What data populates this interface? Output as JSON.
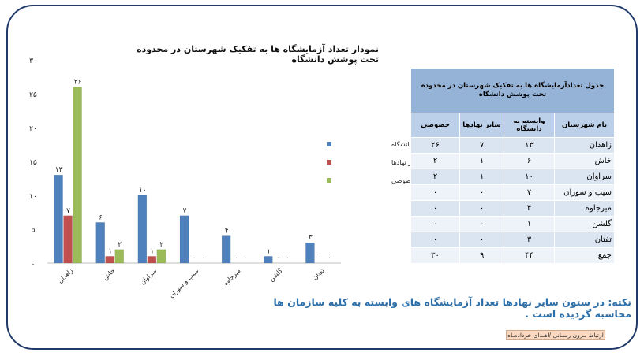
{
  "chart_data": {
    "type": "bar",
    "title": "نمودار تعداد آزمایشگاه ها به تفکیک شهرستان در محدوده تحت پوشش دانشگاه",
    "categories": [
      "زاهدان",
      "خاش",
      "سراوان",
      "سیب و سوران",
      "میرجاوه",
      "گلشن",
      "تفتان"
    ],
    "series": [
      {
        "name": "وابسته به دانشگاه",
        "color": "#4f81bd",
        "values": [
          13,
          6,
          10,
          7,
          4,
          1,
          3
        ],
        "labels": [
          "۱۳",
          "۶",
          "۱۰",
          "۷",
          "۴",
          "۱",
          "۳"
        ]
      },
      {
        "name": "سایر نهادها",
        "color": "#c0504d",
        "values": [
          7,
          1,
          1,
          0,
          0,
          0,
          0
        ],
        "labels": [
          "۷",
          "۱",
          "۱",
          "۰",
          "۰",
          "۰",
          "۰"
        ]
      },
      {
        "name": "خصوصی",
        "color": "#9bbb59",
        "values": [
          26,
          2,
          2,
          0,
          0,
          0,
          0
        ],
        "labels": [
          "۲۶",
          "۲",
          "۲",
          "۰",
          "۰",
          "۰",
          "۰"
        ]
      }
    ],
    "ylim": [
      0,
      30
    ],
    "yticks": [
      0,
      5,
      10,
      15,
      20,
      25,
      30
    ],
    "ytick_labels": [
      "۰",
      "۵",
      "۱۰",
      "۱۵",
      "۲۰",
      "۲۵",
      "۳۰"
    ],
    "legend": "right"
  },
  "table": {
    "caption": "جدول تعدادآزمایشگاه ها به تفکیک شهرستان در محدوده تحت پوشش دانشگاه",
    "headers": [
      "نام شهرستان",
      "وابسته به دانشگاه",
      "سایر نهادها",
      "خصوصی"
    ],
    "rows": [
      [
        "زاهدان",
        "۱۳",
        "۷",
        "۲۶"
      ],
      [
        "خاش",
        "۶",
        "۱",
        "۲"
      ],
      [
        "سراوان",
        "۱۰",
        "۱",
        "۲"
      ],
      [
        "سیب و سوران",
        "۷",
        "۰",
        "۰"
      ],
      [
        "میرجاوه",
        "۴",
        "۰",
        "۰"
      ],
      [
        "گلشن",
        "۱",
        "۰",
        "۰"
      ],
      [
        "تفتان",
        "۳",
        "۰",
        "۰"
      ],
      [
        "جمع",
        "۴۴",
        "۹",
        "۳۰"
      ]
    ]
  },
  "note": "نکته: در ستون سایر نهادها تعداد آزمایشگاه های وابسته به کلیه سازمان ها محاسبه گردیده است .",
  "source": "ارتباط بـرون رسـانی /اهـدای خردادمـاه"
}
